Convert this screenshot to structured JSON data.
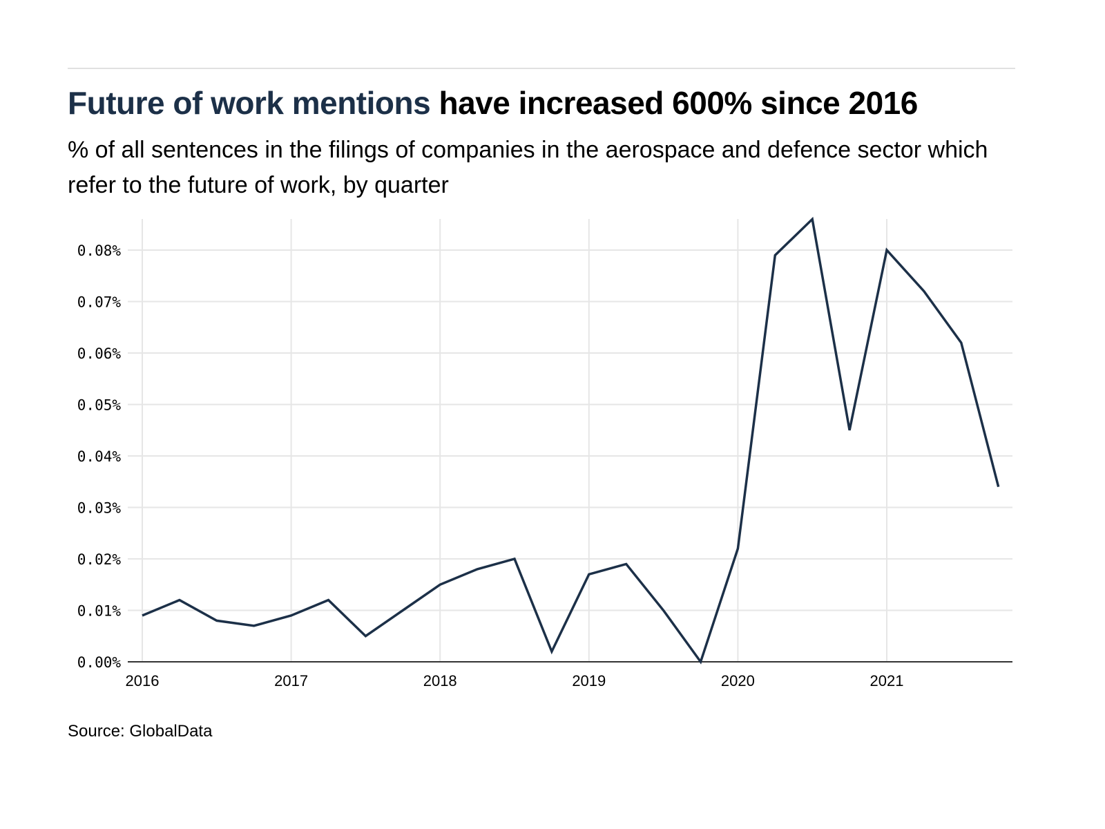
{
  "header": {
    "title_highlight": "Future of work mentions",
    "title_rest": " have increased 600% since 2016",
    "subtitle": "% of all sentences in the filings of companies in the aerospace and defence sector which refer to the future of work, by quarter"
  },
  "footer": {
    "source": "Source: GlobalData"
  },
  "colors": {
    "line": "#1c3048",
    "title_highlight": "#1c3048",
    "grid": "#e6e6e6"
  },
  "chart_data": {
    "type": "line",
    "title": "Future of work mentions have increased 600% since 2016",
    "xlabel": "",
    "ylabel": "",
    "x": [
      "2016Q1",
      "2016Q2",
      "2016Q3",
      "2016Q4",
      "2017Q1",
      "2017Q2",
      "2017Q3",
      "2017Q4",
      "2018Q1",
      "2018Q2",
      "2018Q3",
      "2018Q4",
      "2019Q1",
      "2019Q2",
      "2019Q3",
      "2019Q4",
      "2020Q1",
      "2020Q2",
      "2020Q3",
      "2020Q4",
      "2021Q1",
      "2021Q2",
      "2021Q3",
      "2021Q4"
    ],
    "series": [
      {
        "name": "Future of work mentions (%)",
        "values": [
          0.009,
          0.012,
          0.008,
          0.007,
          0.009,
          0.012,
          0.005,
          0.01,
          0.015,
          0.018,
          0.02,
          0.002,
          0.017,
          0.019,
          0.01,
          0.0,
          0.022,
          0.079,
          0.086,
          0.045,
          0.08,
          0.072,
          0.062,
          0.034
        ]
      }
    ],
    "ylim": [
      0,
      0.086
    ],
    "yticks": [
      0,
      0.01,
      0.02,
      0.03,
      0.04,
      0.05,
      0.06,
      0.07,
      0.08
    ],
    "ytick_labels": [
      "0.00%",
      "0.01%",
      "0.02%",
      "0.03%",
      "0.04%",
      "0.05%",
      "0.06%",
      "0.07%",
      "0.08%"
    ],
    "xtick_labels": [
      "2016",
      "2017",
      "2018",
      "2019",
      "2020",
      "2021"
    ],
    "grid": true,
    "legend": "none"
  }
}
